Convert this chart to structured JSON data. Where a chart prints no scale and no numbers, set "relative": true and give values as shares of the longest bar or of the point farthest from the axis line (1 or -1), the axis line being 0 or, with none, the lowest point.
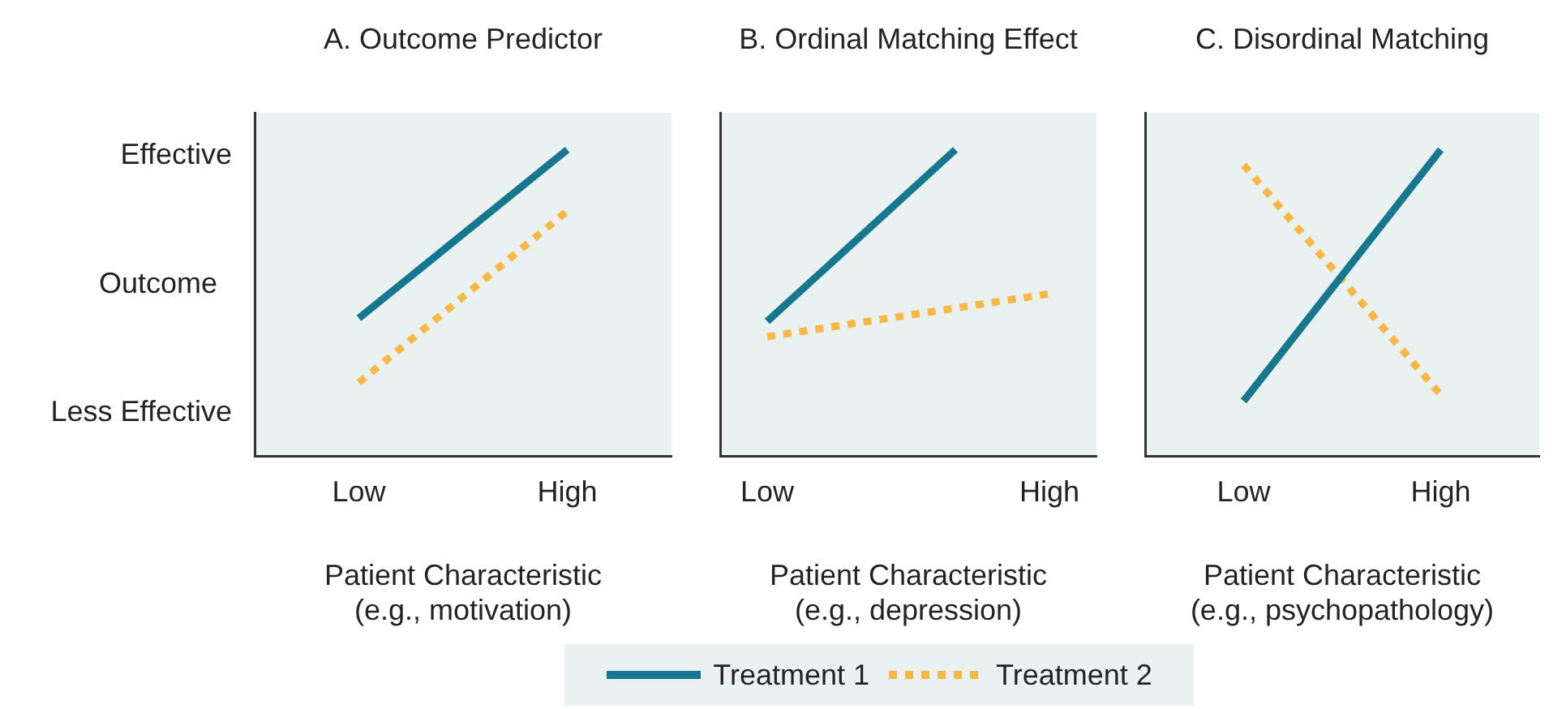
{
  "chart_data": [
    {
      "type": "line",
      "title": "A. Outcome Predictor",
      "xlabel": "Patient Characteristic\n(e.g., motivation)",
      "ylabel": "Outcome",
      "annotations": [
        "Effective",
        "Less Effective"
      ],
      "relative": true,
      "categories": [
        "Low",
        "High"
      ],
      "grid": false,
      "marker": "none",
      "legend": "bottom",
      "series": [
        {
          "name": "Treatment 1",
          "color": "#16778f",
          "values": [
            0.45,
            1
          ],
          "line_style": "solid"
        },
        {
          "name": "Treatment 2",
          "color": "#f7b845",
          "values": [
            0.24,
            0.8
          ],
          "line_style": "dotted"
        }
      ]
    },
    {
      "type": "line",
      "title": "B. Ordinal Matching Effect",
      "xlabel": "Patient Characteristic\n(e.g., depression)",
      "relative": true,
      "categories": [
        "Low",
        null,
        null,
        "High"
      ],
      "grid": false,
      "marker": "none",
      "series": [
        {
          "color": "#16778f",
          "values": [
            0.44,
            null,
            1,
            null
          ],
          "line_style": "solid"
        },
        {
          "color": "#f7b845",
          "values": [
            0.39,
            null,
            null,
            0.53
          ],
          "line_style": "dotted"
        }
      ]
    },
    {
      "type": "line",
      "title": "C. Disordinal Matching",
      "xlabel": "Patient Characteristic\n(e.g., psychopathology)",
      "relative": true,
      "categories": [
        "Low",
        "High"
      ],
      "grid": false,
      "marker": "none",
      "series": [
        {
          "color": "#16778f",
          "values": [
            0.18,
            1
          ],
          "line_style": "solid"
        },
        {
          "color": "#f7b845",
          "values": [
            0.95,
            0.2
          ],
          "line_style": "dotted"
        }
      ]
    }
  ]
}
